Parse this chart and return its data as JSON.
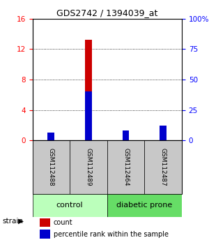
{
  "title": "GDS2742 / 1394039_at",
  "samples": [
    "GSM112488",
    "GSM112489",
    "GSM112464",
    "GSM112487"
  ],
  "count_values": [
    0.05,
    13.2,
    0.65,
    0.8
  ],
  "percentile_values": [
    6.5,
    40.0,
    8.0,
    12.5
  ],
  "ylim_left": [
    0,
    16
  ],
  "ylim_right": [
    0,
    100
  ],
  "yticks_left": [
    0,
    4,
    8,
    12,
    16
  ],
  "yticks_right": [
    0,
    25,
    50,
    75,
    100
  ],
  "ytick_labels_right": [
    "0",
    "25",
    "50",
    "75",
    "100%"
  ],
  "groups": [
    {
      "label": "control",
      "indices": [
        0,
        1
      ],
      "color": "#bbffbb"
    },
    {
      "label": "diabetic prone",
      "indices": [
        2,
        3
      ],
      "color": "#66dd66"
    }
  ],
  "bar_width": 0.18,
  "count_color": "#cc0000",
  "percentile_color": "#0000cc",
  "bg_color": "#ffffff",
  "sample_box_color": "#c8c8c8",
  "strain_label": "strain",
  "legend_count": "count",
  "legend_percentile": "percentile rank within the sample"
}
